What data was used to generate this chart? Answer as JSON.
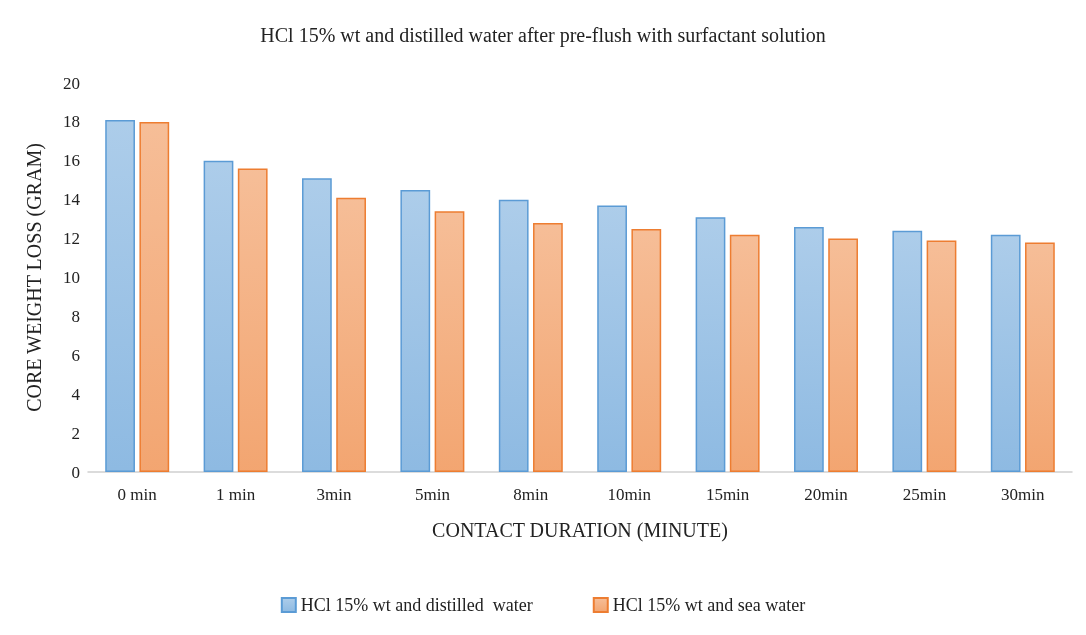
{
  "chart_data": {
    "type": "bar",
    "title": "HCl 15% wt and distilled water after pre-flush with surfactant solution",
    "xlabel": "CONTACT DURATION (MINUTE)",
    "ylabel": "CORE WEIGHT LOSS (GRAM)",
    "categories": [
      "0 min",
      "1 min",
      "3min",
      "5min",
      "8min",
      "10min",
      "15min",
      "20min",
      "25min",
      "30min"
    ],
    "series": [
      {
        "name": "HCl 15% wt and distilled  water",
        "color": "#5b9bd5",
        "values": [
          18.1,
          16.0,
          15.1,
          14.5,
          14.0,
          13.7,
          13.1,
          12.6,
          12.4,
          12.2
        ]
      },
      {
        "name": "HCl 15% wt and sea water",
        "color": "#ed7d31",
        "values": [
          18.0,
          15.6,
          14.1,
          13.4,
          12.8,
          12.5,
          12.2,
          12.0,
          11.9,
          11.8
        ]
      }
    ],
    "ylim": [
      0,
      20
    ],
    "yticks": [
      0,
      2,
      4,
      6,
      8,
      10,
      12,
      14,
      16,
      18,
      20
    ],
    "grid": false,
    "legend": "bottom"
  }
}
